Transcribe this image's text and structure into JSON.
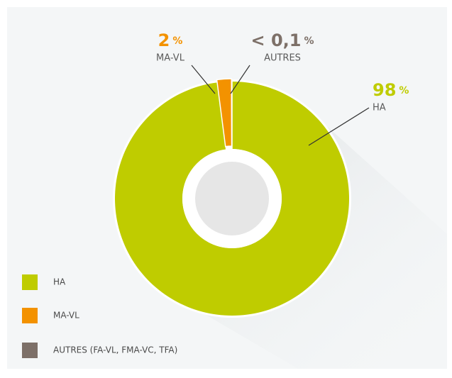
{
  "chart_data": {
    "type": "donut",
    "categories": [
      "HA",
      "MA-VL",
      "AUTRES"
    ],
    "values": [
      98,
      2,
      0.05
    ],
    "value_labels": [
      "98",
      "2",
      "< 0,1"
    ],
    "unit": "%",
    "colors": [
      "#bfcc00",
      "#f39200",
      "#7d7068"
    ],
    "legend_labels": [
      "HA",
      "MA-VL",
      "AUTRES (FA-VL, FMA-VC, TFA)"
    ],
    "legend": "bottom-left"
  }
}
